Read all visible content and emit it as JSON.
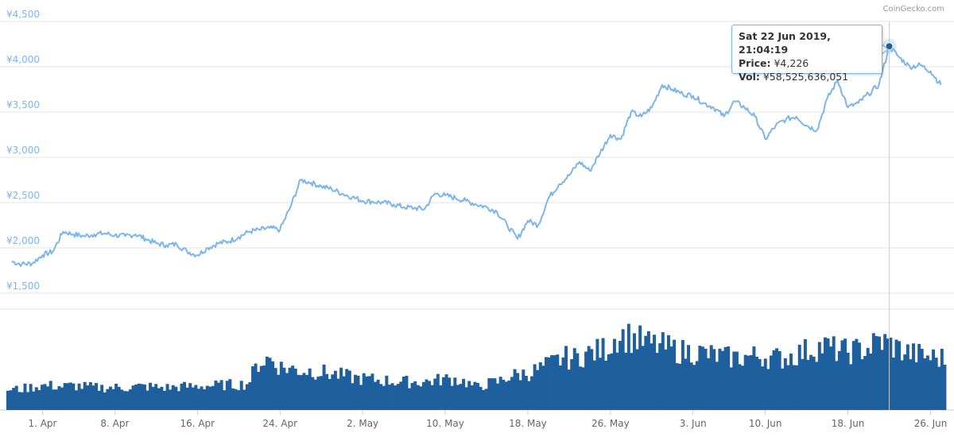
{
  "credit": "CoinGecko.com",
  "colors": {
    "price_line": "#7cb5ec",
    "volume_bars": "#1e5f9e",
    "grid": "#e6e6e6",
    "y_labels": "#7cb5ec",
    "x_labels": "#666666"
  },
  "tooltip": {
    "date": "Sat 22 Jun 2019, 21:04:19",
    "price_label": "Price:",
    "price_value": "¥4,226",
    "vol_label": "Vol:",
    "vol_value": "¥58,525,636,051"
  },
  "chart_data": {
    "type": "line",
    "x_axis": {
      "type": "date",
      "tick_labels": [
        "1. Apr",
        "8. Apr",
        "16. Apr",
        "24. Apr",
        "2. May",
        "10. May",
        "18. May",
        "26. May",
        "3. Jun",
        "10. Jun",
        "18. Jun",
        "26. Jun"
      ]
    },
    "y_axis": {
      "tick_labels": [
        "¥1,500",
        "¥2,000",
        "¥2,500",
        "¥3,000",
        "¥3,500",
        "¥4,000",
        "¥4,500"
      ],
      "ylim": [
        1500,
        4500
      ]
    },
    "grid": true,
    "x_range": [
      "2019-03-29",
      "2019-06-27"
    ],
    "series": [
      {
        "values_kind": "price",
        "points": [
          [
            "2019-03-29",
            1850
          ],
          [
            "2019-03-30",
            1820
          ],
          [
            "2019-03-31",
            1830
          ],
          [
            "2019-04-01",
            1920
          ],
          [
            "2019-04-02",
            1960
          ],
          [
            "2019-04-03",
            2180
          ],
          [
            "2019-04-04",
            2150
          ],
          [
            "2019-04-05",
            2130
          ],
          [
            "2019-04-06",
            2150
          ],
          [
            "2019-04-07",
            2160
          ],
          [
            "2019-04-08",
            2140
          ],
          [
            "2019-04-09",
            2130
          ],
          [
            "2019-04-10",
            2150
          ],
          [
            "2019-04-11",
            2100
          ],
          [
            "2019-04-12",
            2050
          ],
          [
            "2019-04-13",
            2030
          ],
          [
            "2019-04-14",
            2040
          ],
          [
            "2019-04-15",
            1960
          ],
          [
            "2019-04-16",
            1920
          ],
          [
            "2019-04-17",
            2000
          ],
          [
            "2019-04-18",
            2050
          ],
          [
            "2019-04-19",
            2070
          ],
          [
            "2019-04-20",
            2120
          ],
          [
            "2019-04-21",
            2180
          ],
          [
            "2019-04-22",
            2200
          ],
          [
            "2019-04-23",
            2220
          ],
          [
            "2019-04-24",
            2200
          ],
          [
            "2019-04-25",
            2450
          ],
          [
            "2019-04-26",
            2750
          ],
          [
            "2019-04-27",
            2720
          ],
          [
            "2019-04-28",
            2680
          ],
          [
            "2019-04-29",
            2650
          ],
          [
            "2019-04-30",
            2600
          ],
          [
            "2019-05-01",
            2560
          ],
          [
            "2019-05-02",
            2520
          ],
          [
            "2019-05-03",
            2510
          ],
          [
            "2019-05-04",
            2500
          ],
          [
            "2019-05-05",
            2480
          ],
          [
            "2019-05-06",
            2450
          ],
          [
            "2019-05-07",
            2440
          ],
          [
            "2019-05-08",
            2430
          ],
          [
            "2019-05-09",
            2600
          ],
          [
            "2019-05-10",
            2580
          ],
          [
            "2019-05-11",
            2550
          ],
          [
            "2019-05-12",
            2520
          ],
          [
            "2019-05-13",
            2480
          ],
          [
            "2019-05-14",
            2450
          ],
          [
            "2019-05-15",
            2400
          ],
          [
            "2019-05-16",
            2250
          ],
          [
            "2019-05-17",
            2100
          ],
          [
            "2019-05-18",
            2300
          ],
          [
            "2019-05-19",
            2250
          ],
          [
            "2019-05-20",
            2550
          ],
          [
            "2019-05-21",
            2700
          ],
          [
            "2019-05-22",
            2800
          ],
          [
            "2019-05-23",
            2950
          ],
          [
            "2019-05-24",
            2850
          ],
          [
            "2019-05-25",
            3050
          ],
          [
            "2019-05-26",
            3250
          ],
          [
            "2019-05-27",
            3200
          ],
          [
            "2019-05-28",
            3500
          ],
          [
            "2019-05-29",
            3450
          ],
          [
            "2019-05-30",
            3550
          ],
          [
            "2019-05-31",
            3800
          ],
          [
            "2019-06-01",
            3750
          ],
          [
            "2019-06-02",
            3700
          ],
          [
            "2019-06-03",
            3680
          ],
          [
            "2019-06-04",
            3600
          ],
          [
            "2019-06-05",
            3550
          ],
          [
            "2019-06-06",
            3450
          ],
          [
            "2019-06-07",
            3620
          ],
          [
            "2019-06-08",
            3550
          ],
          [
            "2019-06-09",
            3450
          ],
          [
            "2019-06-10",
            3200
          ],
          [
            "2019-06-11",
            3350
          ],
          [
            "2019-06-12",
            3420
          ],
          [
            "2019-06-13",
            3450
          ],
          [
            "2019-06-14",
            3350
          ],
          [
            "2019-06-15",
            3300
          ],
          [
            "2019-06-16",
            3650
          ],
          [
            "2019-06-17",
            3850
          ],
          [
            "2019-06-18",
            3550
          ],
          [
            "2019-06-19",
            3600
          ],
          [
            "2019-06-20",
            3700
          ],
          [
            "2019-06-21",
            3800
          ],
          [
            "2019-06-22",
            4226
          ],
          [
            "2019-06-23",
            4100
          ],
          [
            "2019-06-24",
            4000
          ],
          [
            "2019-06-25",
            4020
          ],
          [
            "2019-06-26",
            3950
          ],
          [
            "2019-06-27",
            3800
          ]
        ]
      },
      {
        "values_kind": "volume",
        "relative_levels": [
          0.22,
          0.22,
          0.24,
          0.26,
          0.26,
          0.25,
          0.26,
          0.25,
          0.24,
          0.24,
          0.24,
          0.24,
          0.25,
          0.25,
          0.24,
          0.24,
          0.25,
          0.25,
          0.26,
          0.26,
          0.27,
          0.27,
          0.28,
          0.5,
          0.55,
          0.46,
          0.44,
          0.42,
          0.42,
          0.4,
          0.38,
          0.36,
          0.34,
          0.33,
          0.32,
          0.31,
          0.3,
          0.3,
          0.3,
          0.31,
          0.33,
          0.33,
          0.3,
          0.24,
          0.28,
          0.3,
          0.36,
          0.38,
          0.4,
          0.45,
          0.5,
          0.56,
          0.55,
          0.6,
          0.62,
          0.66,
          0.8,
          0.78,
          0.74,
          0.7,
          0.68,
          0.65,
          0.62,
          0.62,
          0.6,
          0.58,
          0.56,
          0.56,
          0.57,
          0.58,
          0.56,
          0.55,
          0.58,
          0.62,
          0.66,
          0.68,
          0.64,
          0.62,
          0.64,
          0.66,
          0.74,
          0.7,
          0.64,
          0.6,
          0.58,
          0.56,
          0.55
        ]
      }
    ],
    "tooltip_point": {
      "x": "2019-06-22",
      "price": 4226
    }
  }
}
